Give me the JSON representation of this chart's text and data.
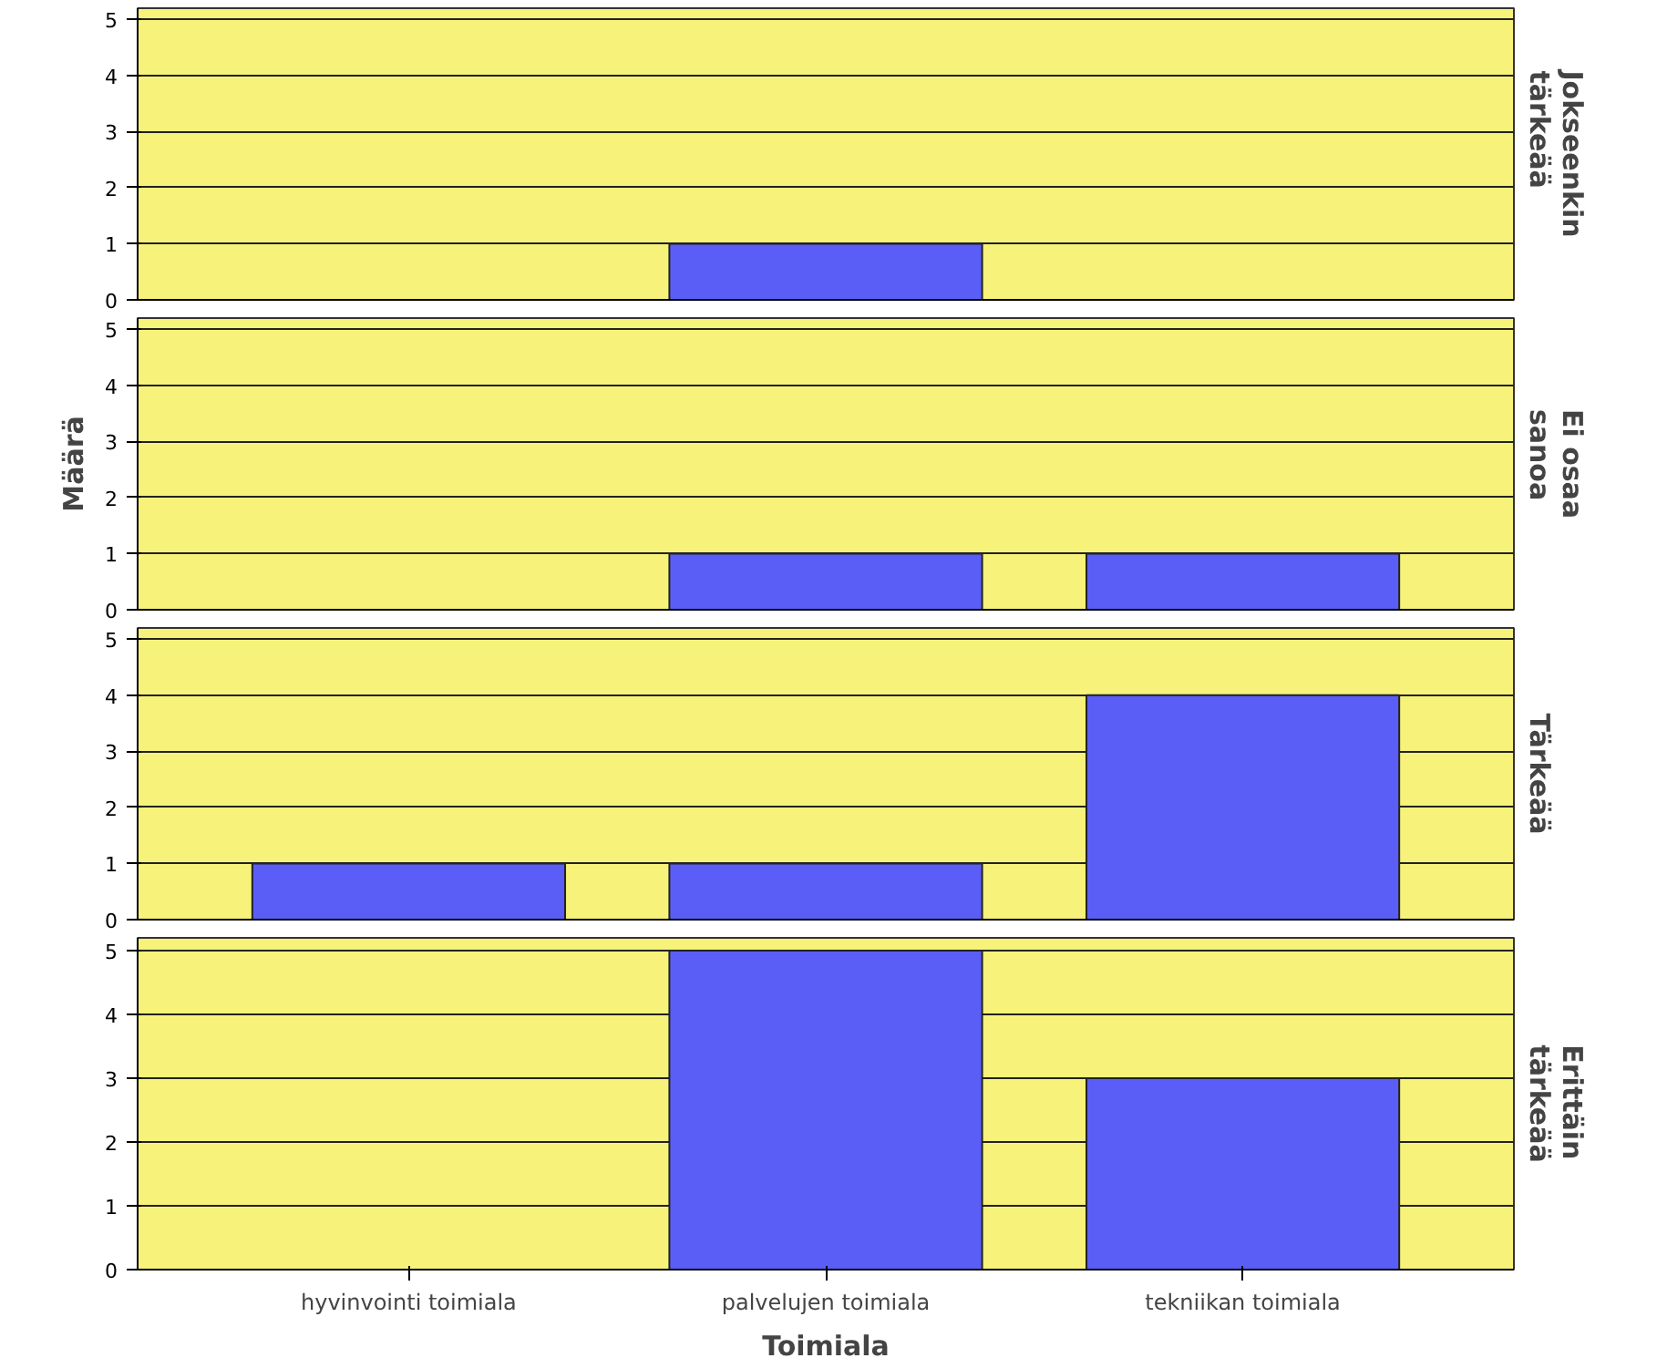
{
  "chart_data": [
    {
      "type": "bar",
      "title": "Jokseenkin tärkeää",
      "categories": [
        null,
        null,
        null
      ],
      "values": [
        null,
        1,
        null
      ],
      "color": "#5a5ef7",
      "ylim": [
        0,
        5.2
      ],
      "yticks": [
        0,
        1,
        2,
        3,
        4,
        5
      ],
      "grid": "y",
      "tick_labels": "y"
    },
    {
      "type": "bar",
      "title": "Ei osaa sanoa",
      "ylabel": "Määrä",
      "categories": [
        null,
        null,
        null
      ],
      "values": [
        null,
        1,
        1
      ],
      "color": "#5a5ef7",
      "ylim": [
        0,
        5.2
      ],
      "yticks": [
        0,
        1,
        2,
        3,
        4,
        5
      ],
      "grid": "y",
      "tick_labels": "y"
    },
    {
      "type": "bar",
      "title": "Tärkeää",
      "categories": [
        null,
        null,
        null
      ],
      "values": [
        1,
        1,
        4
      ],
      "color": "#5a5ef7",
      "ylim": [
        0,
        5.2
      ],
      "yticks": [
        0,
        1,
        2,
        3,
        4,
        5
      ],
      "grid": "y",
      "tick_labels": "y"
    },
    {
      "type": "bar",
      "title": "Erittäin tärkeää",
      "xlabel": "Toimiala",
      "categories": [
        "hyvinvointi toimiala",
        "palvelujen toimiala",
        "tekniikan toimiala"
      ],
      "values": [
        null,
        5,
        3
      ],
      "color": "#5a5ef7",
      "ylim": [
        0,
        5.2
      ],
      "yticks": [
        0,
        1,
        2,
        3,
        4,
        5
      ],
      "grid": "y"
    }
  ]
}
